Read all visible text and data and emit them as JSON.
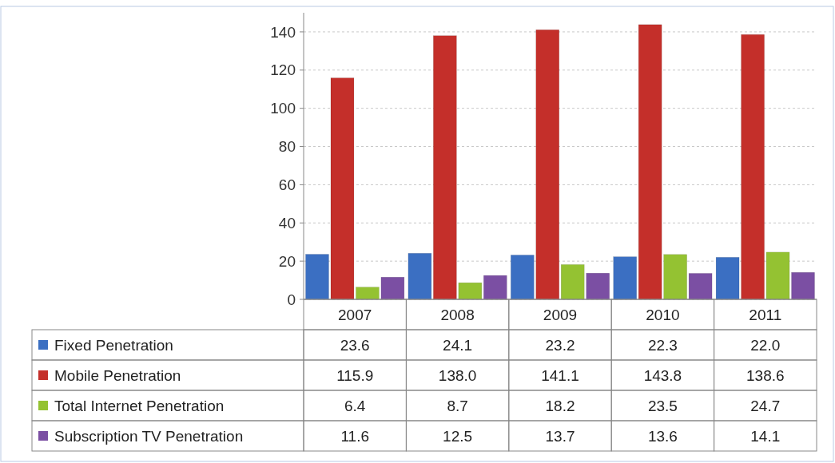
{
  "chart_data": {
    "type": "bar",
    "categories": [
      "2007",
      "2008",
      "2009",
      "2010",
      "2011"
    ],
    "series": [
      {
        "name": "Fixed Penetration",
        "color": "#3b6fc2",
        "values": [
          23.6,
          24.1,
          23.2,
          22.3,
          22.0
        ],
        "value_labels": [
          "23.6",
          "24.1",
          "23.2",
          "22.3",
          "22.0"
        ]
      },
      {
        "name": "Mobile Penetration",
        "color": "#c42f2a",
        "values": [
          115.9,
          138.0,
          141.1,
          143.8,
          138.6
        ],
        "value_labels": [
          "115.9",
          "138.0",
          "141.1",
          "143.8",
          "138.6"
        ]
      },
      {
        "name": "Total Internet Penetration",
        "color": "#94c232",
        "values": [
          6.4,
          8.7,
          18.2,
          23.5,
          24.7
        ],
        "value_labels": [
          "6.4",
          "8.7",
          "18.2",
          "23.5",
          "24.7"
        ]
      },
      {
        "name": "Subscription TV Penetration",
        "color": "#7b4fa3",
        "values": [
          11.6,
          12.5,
          13.7,
          13.6,
          14.1
        ],
        "value_labels": [
          "11.6",
          "12.5",
          "13.7",
          "13.6",
          "14.1"
        ]
      }
    ],
    "ylim": [
      0,
      150
    ],
    "yticks": [
      0,
      20,
      40,
      60,
      80,
      100,
      120,
      140
    ],
    "grid": "y",
    "legend": "bottom"
  }
}
